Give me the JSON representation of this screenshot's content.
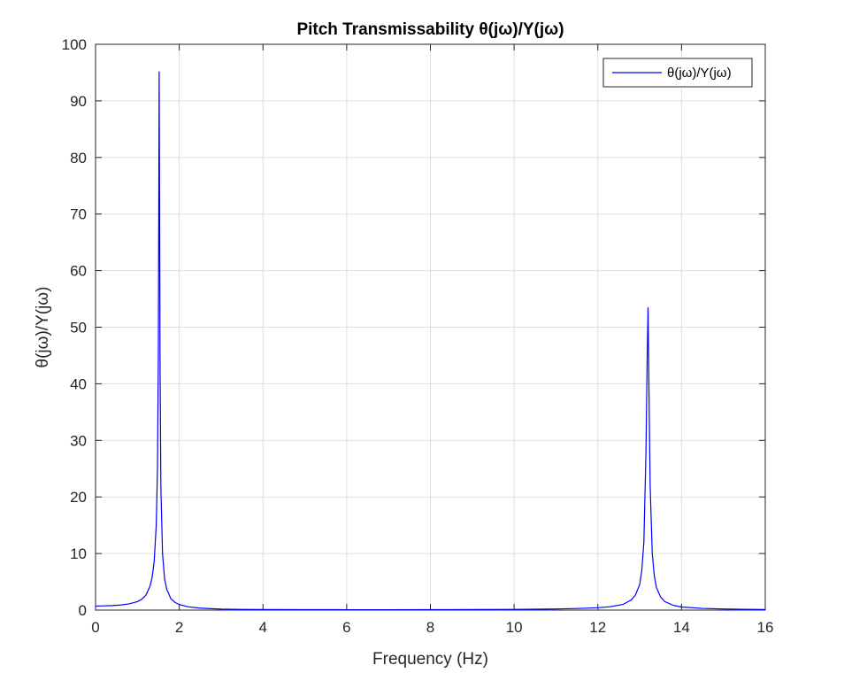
{
  "chart_data": {
    "type": "line",
    "title": "Pitch Transmissability θ(jω)/Y(jω)",
    "xlabel": "Frequency (Hz)",
    "ylabel": "θ(jω)/Y(jω)",
    "xlim": [
      0,
      16
    ],
    "ylim": [
      0,
      100
    ],
    "xticks": [
      "0",
      "2",
      "4",
      "6",
      "8",
      "10",
      "12",
      "14",
      "16"
    ],
    "yticks": [
      "0",
      "10",
      "20",
      "30",
      "40",
      "50",
      "60",
      "70",
      "80",
      "90",
      "100"
    ],
    "grid": true,
    "legend_position": "top-right",
    "series": [
      {
        "name": "θ(jω)/Y(jω)",
        "color": "#0000ff",
        "resonances": [
          {
            "frequency": 1.52,
            "peak": 95.2
          },
          {
            "frequency": 13.2,
            "peak": 53.5
          }
        ],
        "x": [
          0,
          0.2,
          0.4,
          0.6,
          0.8,
          1.0,
          1.1,
          1.2,
          1.3,
          1.35,
          1.4,
          1.45,
          1.48,
          1.5,
          1.51,
          1.52,
          1.53,
          1.54,
          1.56,
          1.6,
          1.65,
          1.7,
          1.8,
          1.9,
          2.0,
          2.2,
          2.5,
          3.0,
          3.5,
          4.0,
          5.0,
          6.0,
          7.0,
          8.0,
          9.0,
          10.0,
          10.5,
          11.0,
          11.5,
          12.0,
          12.3,
          12.6,
          12.8,
          12.9,
          13.0,
          13.05,
          13.1,
          13.15,
          13.18,
          13.2,
          13.22,
          13.25,
          13.3,
          13.35,
          13.4,
          13.5,
          13.6,
          13.8,
          14.0,
          14.5,
          15.0,
          15.5,
          16.0
        ],
        "y": [
          0.7,
          0.75,
          0.8,
          0.9,
          1.1,
          1.5,
          1.9,
          2.6,
          4.2,
          5.7,
          8.5,
          15.0,
          25.0,
          45.0,
          70.0,
          95.2,
          72.0,
          45.0,
          22.0,
          10.0,
          5.5,
          3.7,
          2.0,
          1.35,
          1.0,
          0.6,
          0.35,
          0.18,
          0.12,
          0.1,
          0.08,
          0.07,
          0.07,
          0.08,
          0.1,
          0.13,
          0.16,
          0.2,
          0.28,
          0.42,
          0.6,
          1.0,
          1.8,
          2.7,
          4.5,
          7.0,
          12.0,
          28.0,
          45.0,
          53.5,
          40.0,
          22.0,
          10.0,
          6.0,
          4.0,
          2.3,
          1.5,
          0.85,
          0.55,
          0.3,
          0.2,
          0.15,
          0.1
        ]
      }
    ]
  }
}
